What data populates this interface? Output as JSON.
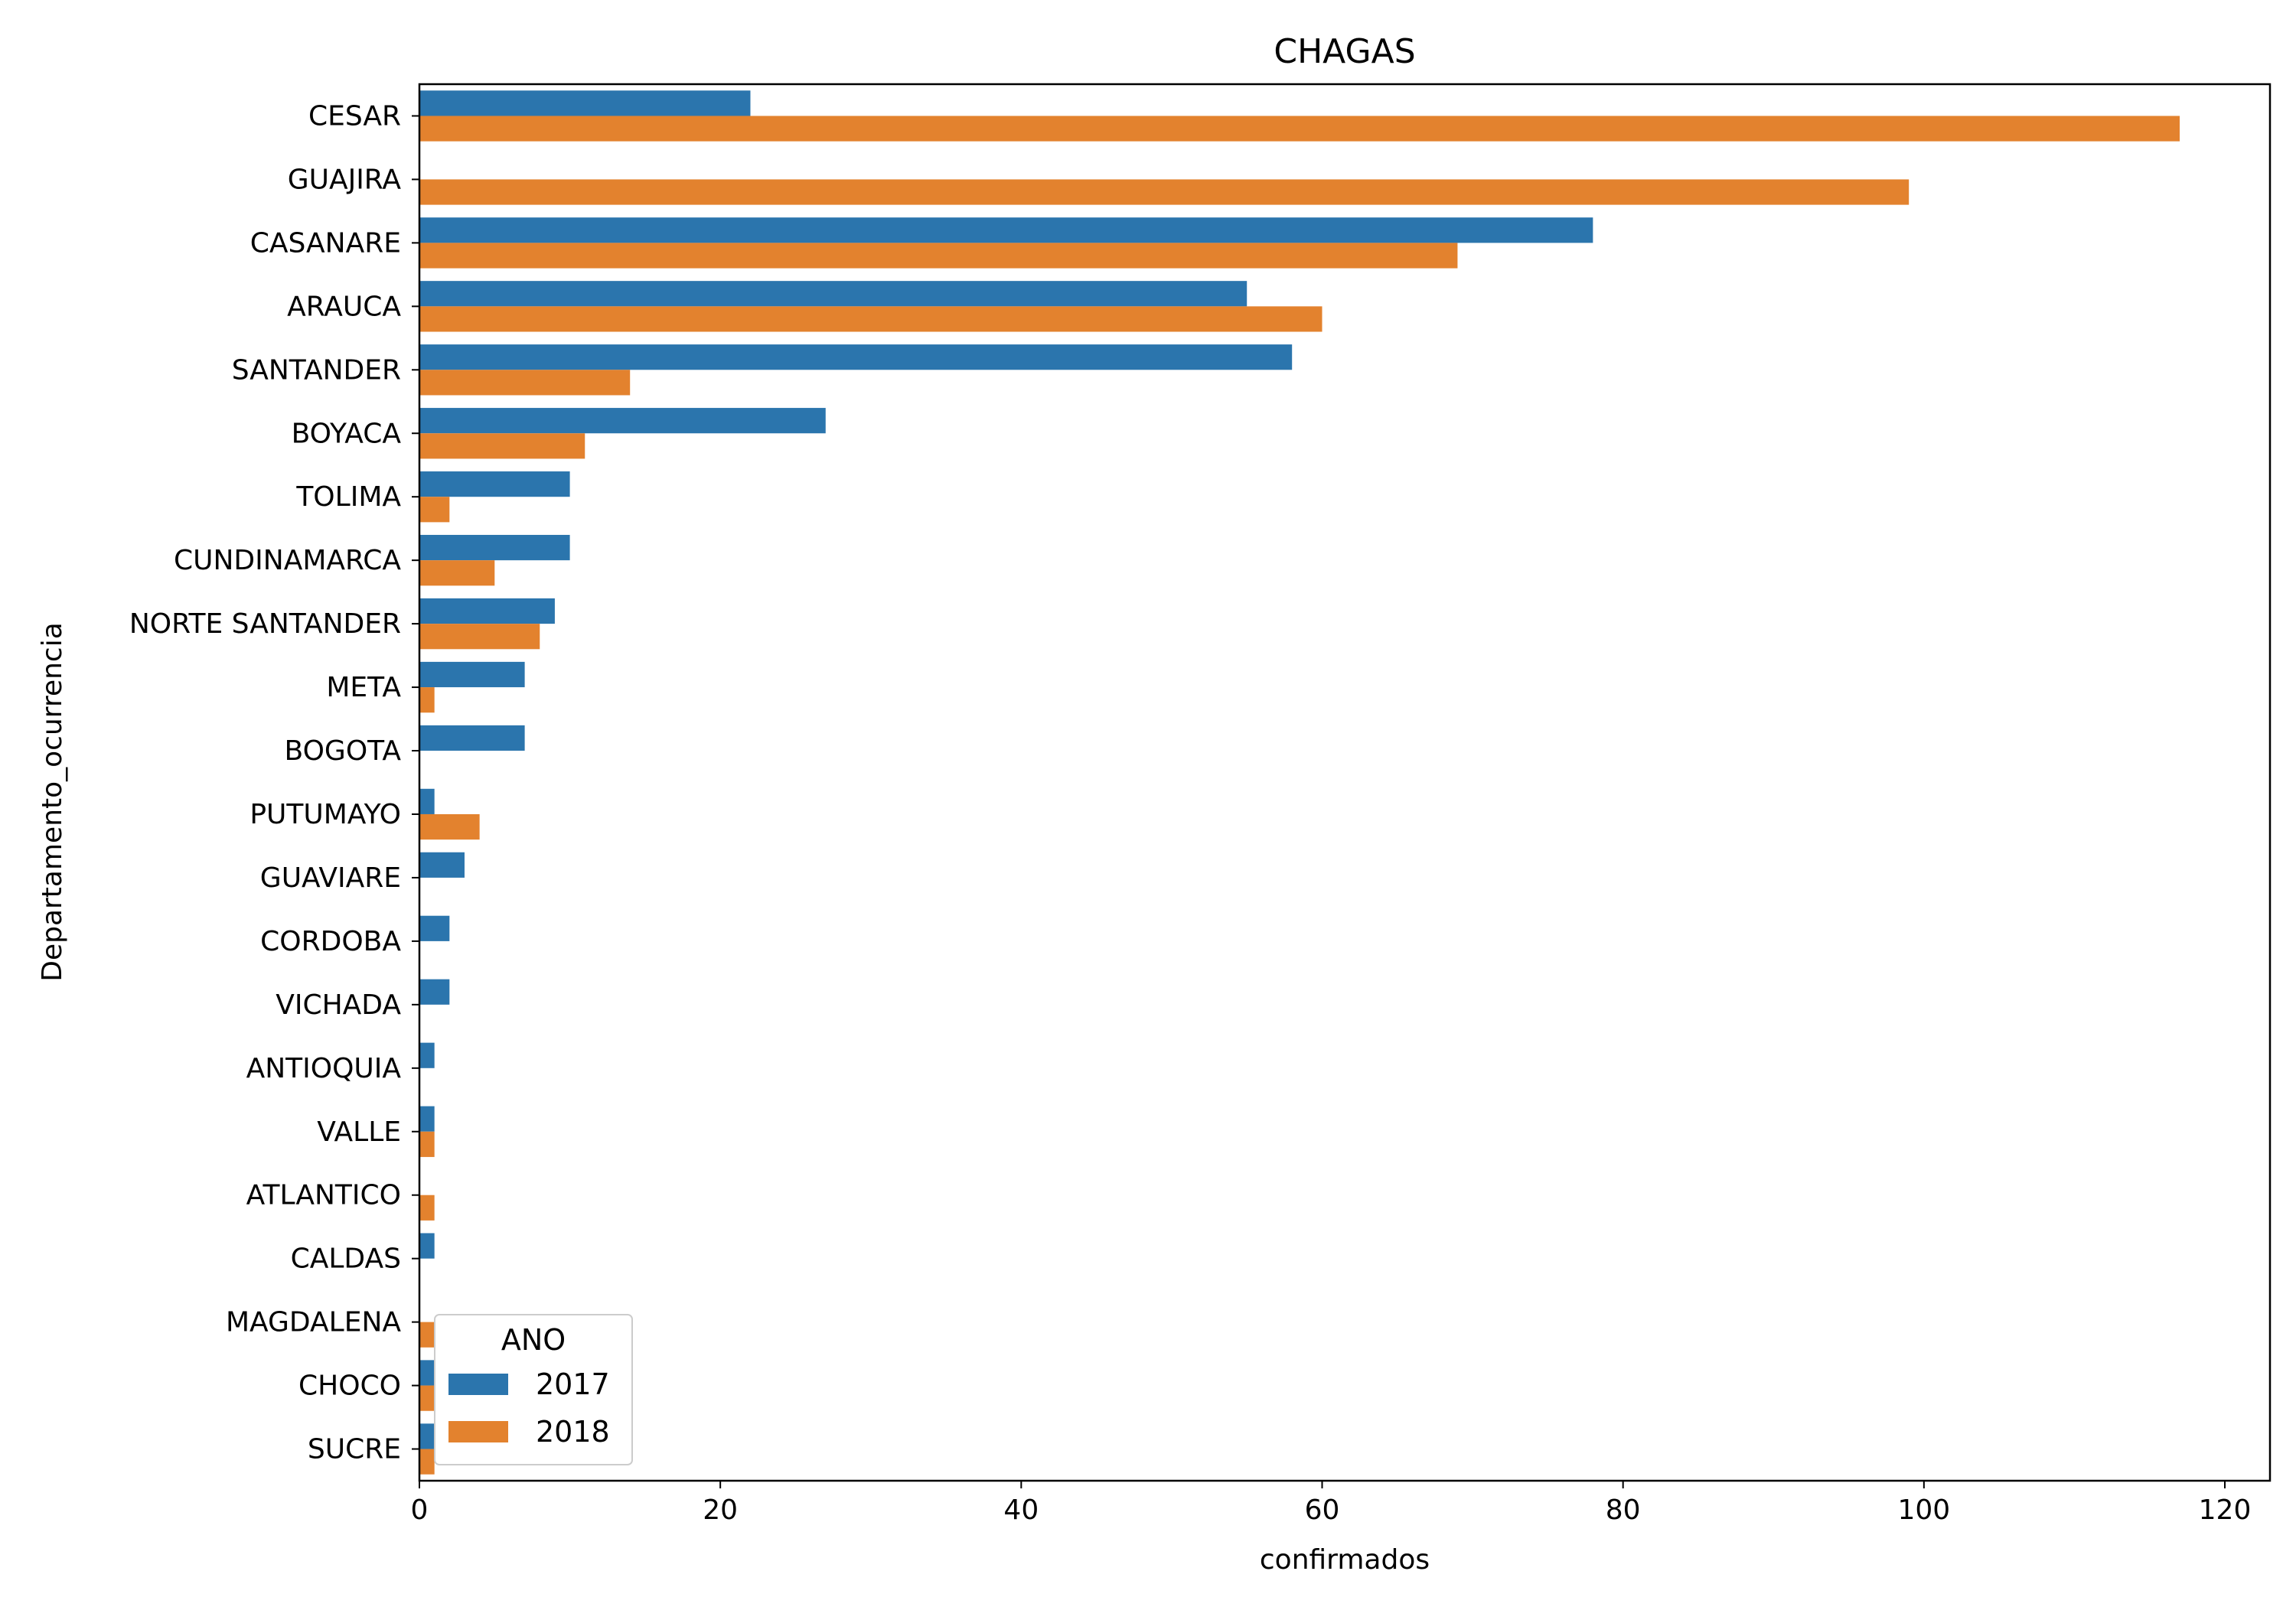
{
  "chart_data": {
    "type": "bar",
    "orientation": "horizontal",
    "title": "CHAGAS",
    "xlabel": "confirmados",
    "ylabel": "Departamento_ocurrencia",
    "xlim": [
      0,
      123
    ],
    "xticks": [
      0,
      20,
      40,
      60,
      80,
      100,
      120
    ],
    "grid": false,
    "legend_position": "lower-left",
    "legend_title": "ANO",
    "categories": [
      "CESAR",
      "GUAJIRA",
      "CASANARE",
      "ARAUCA",
      "SANTANDER",
      "BOYACA",
      "TOLIMA",
      "CUNDINAMARCA",
      "NORTE SANTANDER",
      "META",
      "BOGOTA",
      "PUTUMAYO",
      "GUAVIARE",
      "CORDOBA",
      "VICHADA",
      "ANTIOQUIA",
      "VALLE",
      "ATLANTICO",
      "CALDAS",
      "MAGDALENA",
      "CHOCO",
      "SUCRE"
    ],
    "series": [
      {
        "name": "2017",
        "color": "#2b75ad",
        "values": [
          22,
          0,
          78,
          55,
          58,
          27,
          10,
          10,
          9,
          7,
          7,
          1,
          3,
          2,
          2,
          1,
          1,
          0,
          1,
          0,
          1,
          1
        ]
      },
      {
        "name": "2018",
        "color": "#e3822e",
        "values": [
          117,
          99,
          69,
          60,
          14,
          11,
          2,
          5,
          8,
          1,
          0,
          4,
          0,
          0,
          0,
          0,
          1,
          1,
          0,
          1,
          1,
          1
        ]
      }
    ]
  }
}
